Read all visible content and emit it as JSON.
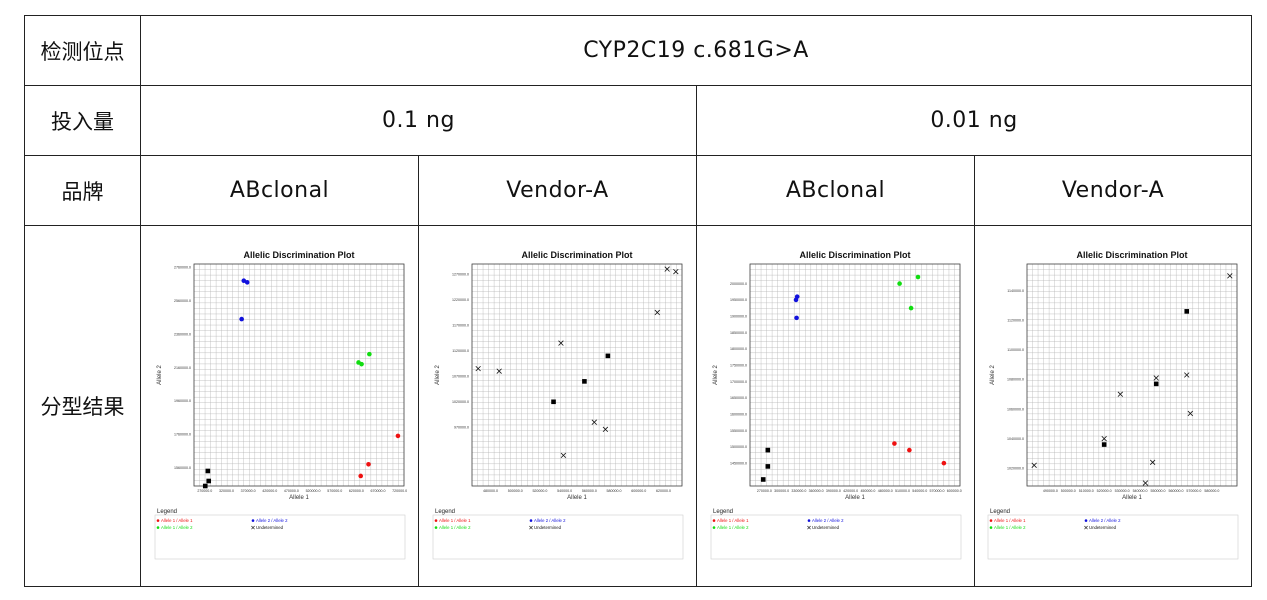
{
  "table": {
    "row1_header": "检测位点",
    "site": "CYP2C19 c.681G>A",
    "row2_header": "投入量",
    "amounts": [
      "0.1 ng",
      "0.01 ng"
    ],
    "row3_header": "品牌",
    "brands": [
      "ABclonal",
      "Vendor-A",
      "ABclonal",
      "Vendor-A"
    ],
    "row4_header": "分型结果"
  },
  "colors": {
    "allele1": "#ee1111",
    "allele2": "#1111dd",
    "both": "#11dd11",
    "undetermined": "#111111",
    "ntc": "#000000"
  },
  "legend": {
    "title": "Legend",
    "allele1": "Allele 1 / Allele 1",
    "allele2": "Allele 2 / Allele 2",
    "both": "Allele 1 / Allele 2",
    "undetermined": "Undetermined"
  },
  "chart_data": [
    {
      "type": "scatter",
      "title": "Allelic Discrimination Plot",
      "xlabel": "Allele 1",
      "ylabel": "Allele 2",
      "xlim": [
        245000,
        730000
      ],
      "ylim": [
        1450000,
        2780000
      ],
      "xticks": [
        "270000.0",
        "320000.0",
        "370000.0",
        "420000.0",
        "470000.0",
        "520000.0",
        "570000.0",
        "620000.0",
        "670000.0",
        "720000.0"
      ],
      "yticks": [
        "2760000.0",
        "2560000.0",
        "2360000.0",
        "2160000.0",
        "1960000.0",
        "1760000.0",
        "1560000.0"
      ],
      "points": {
        "allele2": [
          [
            360000,
            2680000
          ],
          [
            368000,
            2670000
          ],
          [
            355000,
            2450000
          ]
        ],
        "both": [
          [
            625000,
            2190000
          ],
          [
            632000,
            2180000
          ],
          [
            650000,
            2240000
          ]
        ],
        "allele1": [
          [
            716000,
            1750000
          ],
          [
            648000,
            1580000
          ],
          [
            630000,
            1510000
          ]
        ],
        "undetermined": [],
        "ntc": [
          [
            277000,
            1540000
          ],
          [
            279000,
            1480000
          ],
          [
            271000,
            1450000
          ]
        ]
      }
    },
    {
      "type": "scatter",
      "title": "Allelic Discrimination Plot",
      "xlabel": "Allele 1",
      "ylabel": "Allele 2",
      "xlim": [
        465000,
        635000
      ],
      "ylim": [
        855000,
        1290000
      ],
      "xticks": [
        "480000.0",
        "500000.0",
        "520000.0",
        "540000.0",
        "560000.0",
        "580000.0",
        "600000.0",
        "620000.0"
      ],
      "yticks": [
        "1270000.0",
        "1220000.0",
        "1170000.0",
        "1120000.0",
        "1070000.0",
        "1020000.0",
        "970000.0"
      ],
      "points": {
        "allele2": [],
        "both": [],
        "allele1": [],
        "undetermined": [
          [
            623000,
            1280000
          ],
          [
            630000,
            1275000
          ],
          [
            615000,
            1195000
          ],
          [
            537000,
            1135000
          ],
          [
            470000,
            1085000
          ],
          [
            487000,
            1080000
          ],
          [
            564000,
            980000
          ],
          [
            573000,
            966000
          ],
          [
            539000,
            915000
          ]
        ],
        "ntc": [
          [
            575000,
            1110000
          ],
          [
            556000,
            1060000
          ],
          [
            531000,
            1020000
          ]
        ]
      }
    },
    {
      "type": "scatter",
      "title": "Allelic Discrimination Plot",
      "xlabel": "Allele 1",
      "ylabel": "Allele 2",
      "xlim": [
        245000,
        610000
      ],
      "ylim": [
        1380000,
        2060000
      ],
      "xticks": [
        "270000.0",
        "300000.0",
        "330000.0",
        "360000.0",
        "390000.0",
        "420000.0",
        "450000.0",
        "480000.0",
        "510000.0",
        "540000.0",
        "570000.0",
        "600000.0"
      ],
      "yticks": [
        "2000000.0",
        "1950000.0",
        "1900000.0",
        "1850000.0",
        "1800000.0",
        "1750000.0",
        "1700000.0",
        "1650000.0",
        "1600000.0",
        "1550000.0",
        "1500000.0",
        "1450000.0"
      ],
      "points": {
        "allele2": [
          [
            327000,
            1960000
          ],
          [
            325000,
            1950000
          ],
          [
            326000,
            1895000
          ]
        ],
        "both": [
          [
            505000,
            2000000
          ],
          [
            537000,
            2020000
          ],
          [
            525000,
            1925000
          ]
        ],
        "allele1": [
          [
            496000,
            1510000
          ],
          [
            522000,
            1490000
          ],
          [
            582000,
            1450000
          ]
        ],
        "undetermined": [],
        "ntc": [
          [
            276000,
            1490000
          ],
          [
            276000,
            1440000
          ],
          [
            268000,
            1400000
          ]
        ]
      }
    },
    {
      "type": "scatter",
      "title": "Allelic Discrimination Plot",
      "xlabel": "Allele 1",
      "ylabel": "Allele 2",
      "xlim": [
        477000,
        594000
      ],
      "ylim": [
        1008000,
        1158000
      ],
      "xticks": [
        "490000.0",
        "500000.0",
        "510000.0",
        "520000.0",
        "530000.0",
        "540000.0",
        "550000.0",
        "560000.0",
        "570000.0",
        "580000.0"
      ],
      "yticks": [
        "1140000.0",
        "1120000.0",
        "1100000.0",
        "1080000.0",
        "1060000.0",
        "1040000.0",
        "1020000.0"
      ],
      "points": {
        "allele2": [],
        "both": [],
        "allele1": [],
        "undetermined": [
          [
            590000,
            1150000
          ],
          [
            566000,
            1083000
          ],
          [
            549000,
            1081000
          ],
          [
            529000,
            1070000
          ],
          [
            568000,
            1057000
          ],
          [
            520000,
            1040000
          ],
          [
            547000,
            1024000
          ],
          [
            481000,
            1022000
          ],
          [
            543000,
            1010000
          ]
        ],
        "ntc": [
          [
            566000,
            1126000
          ],
          [
            549000,
            1077000
          ],
          [
            520000,
            1036000
          ]
        ]
      }
    }
  ]
}
